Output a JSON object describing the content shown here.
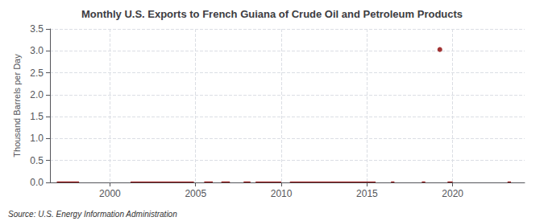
{
  "chart_data": {
    "type": "bar",
    "title": "Monthly U.S. Exports to French Guiana of Crude Oil and Petroleum Products",
    "ylabel": "Thousand Barrels per Day",
    "annotations": [
      "Source: U.S. Energy Information Administration"
    ],
    "xlim": [
      1996.5,
      2024.2
    ],
    "ylim": [
      0,
      3.5
    ],
    "xticks": [
      2000,
      2005,
      2010,
      2015,
      2020
    ],
    "yticks": [
      {
        "value": 0.0,
        "label": "0.0"
      },
      {
        "value": 0.5,
        "label": "0.5"
      },
      {
        "value": 1.0,
        "label": "1.0"
      },
      {
        "value": 1.5,
        "label": "1.5"
      },
      {
        "value": 2.0,
        "label": "2.0"
      },
      {
        "value": 2.5,
        "label": "2.5"
      },
      {
        "value": 3.0,
        "label": "3.0"
      },
      {
        "value": 3.5,
        "label": "3.5"
      }
    ],
    "grid": true,
    "series": [
      {
        "type": "bar",
        "color": "#8B0000",
        "x": [
          [
            1996.9,
            1998.2
          ],
          [
            2001.2,
            2004.9
          ],
          [
            2005.5,
            2006.0
          ],
          [
            2006.5,
            2007.0
          ],
          [
            2007.8,
            2008.2
          ],
          [
            2008.5,
            2010.0
          ],
          [
            2010.5,
            2015.5
          ],
          [
            2016.4,
            2016.6
          ],
          [
            2018.2,
            2018.4
          ],
          [
            2019.7,
            2020.0
          ],
          [
            2023.2,
            2023.4
          ]
        ],
        "values": [
          0.02,
          0.02,
          0.02,
          0.02,
          0.02,
          0.02,
          0.02,
          0.02,
          0.02,
          0.02,
          0.02
        ]
      },
      {
        "type": "scatter",
        "color": "#8B0000",
        "marker": "circle",
        "x": [
          2019.25
        ],
        "values": [
          3.03
        ]
      }
    ]
  }
}
